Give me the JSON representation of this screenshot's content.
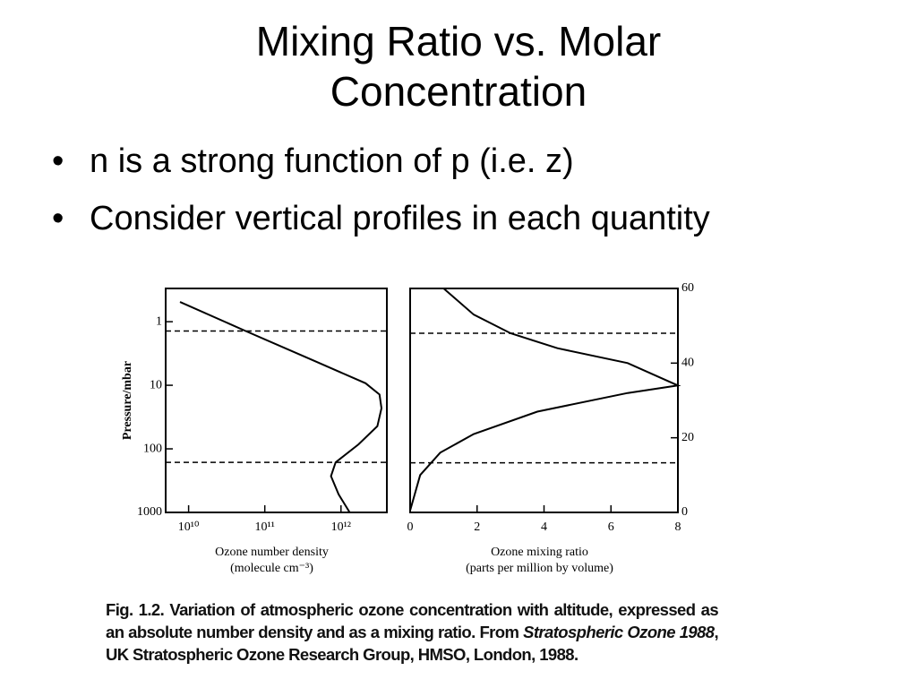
{
  "title": [
    "Mixing Ratio vs. Molar",
    "Concentration"
  ],
  "bullets": [
    "n is a strong function of p (i.e. z)",
    "Consider vertical profiles in each quantity"
  ],
  "chart_data": [
    {
      "type": "line",
      "ylabel": "Pressure/mbar",
      "xlabel": [
        "Ozone number density",
        "(molecule cm⁻³)"
      ],
      "xlog": true,
      "ylog": true,
      "xlim": [
        5000000000,
        4000000000000
      ],
      "ylim": [
        1000,
        0.3
      ],
      "xticks": [
        {
          "value": 10000000000,
          "label": "10¹⁰"
        },
        {
          "value": 100000000000,
          "label": "10¹¹"
        },
        {
          "value": 1000000000000,
          "label": "10¹²"
        }
      ],
      "yticks": [
        1,
        10,
        100,
        1000
      ],
      "hlines": [
        1.4,
        163
      ],
      "color": "#000000",
      "x": [
        7700000000,
        56000000000,
        440000000000,
        2100000000000,
        3200000000000,
        3400000000000,
        3000000000000,
        1700000000000,
        850000000000,
        740000000000,
        930000000000,
        1300000000000
      ],
      "values": [
        0.49,
        1.4,
        4.1,
        9.3,
        14,
        23,
        44,
        85,
        163,
        269,
        520,
        1000
      ]
    },
    {
      "type": "line",
      "xlabel": [
        "Ozone mixing ratio",
        "(parts per million by volume)"
      ],
      "xlim": [
        0,
        8
      ],
      "ylim": [
        0,
        60
      ],
      "xticks": [
        0,
        2,
        4,
        6,
        8
      ],
      "yticks": [
        0,
        20,
        40,
        60
      ],
      "hlines": [
        48,
        13.3
      ],
      "color": "#000000",
      "x": [
        0,
        0.3,
        0.9,
        1.9,
        3.8,
        6.5,
        8,
        6.5,
        4.4,
        3,
        1.9,
        1
      ],
      "values": [
        0.5,
        10,
        16,
        21,
        27,
        32,
        34,
        40,
        44,
        48,
        53,
        60
      ]
    }
  ],
  "caption": {
    "label": "Fig. 1.2.",
    "text": "Variation of atmospheric ozone concentration with altitude, expressed as an absolute number density and as a mixing ratio. From",
    "source": "Stratospheric Ozone 1988",
    "rest": ", UK Stratospheric Ozone Research Group, HMSO, London, 1988."
  }
}
